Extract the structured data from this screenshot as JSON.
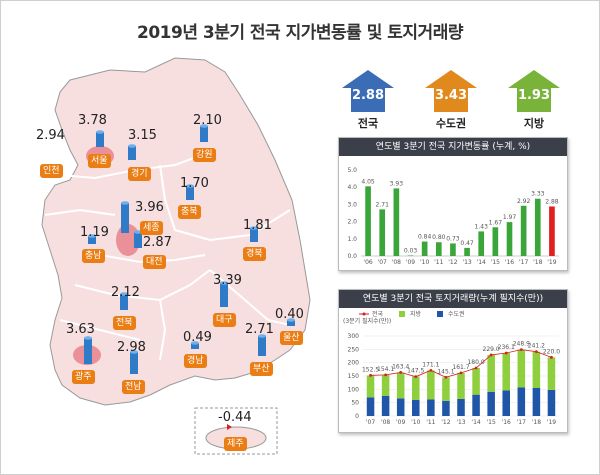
{
  "title": "2019년 3분기 전국 지가변동률 및 토지거래량",
  "summary": [
    {
      "label": "전국",
      "value": "2.88",
      "color": "#3a6db5"
    },
    {
      "label": "수도권",
      "value": "3.43",
      "color": "#e08a1e"
    },
    {
      "label": "지방",
      "value": "1.93",
      "color": "#7ab33a"
    }
  ],
  "regions": [
    {
      "name": "인천",
      "value": "2.94"
    },
    {
      "name": "서울",
      "value": "3.78"
    },
    {
      "name": "경기",
      "value": "3.15"
    },
    {
      "name": "강원",
      "value": "2.10"
    },
    {
      "name": "충북",
      "value": "1.70"
    },
    {
      "name": "세종",
      "value": "3.96"
    },
    {
      "name": "대전",
      "value": "2.87"
    },
    {
      "name": "충남",
      "value": "1.19"
    },
    {
      "name": "경북",
      "value": "1.81"
    },
    {
      "name": "대구",
      "value": "3.39"
    },
    {
      "name": "전북",
      "value": "2.12"
    },
    {
      "name": "광주",
      "value": "3.63"
    },
    {
      "name": "전남",
      "value": "2.98"
    },
    {
      "name": "경남",
      "value": "0.49"
    },
    {
      "name": "부산",
      "value": "2.71"
    },
    {
      "name": "울산",
      "value": "0.40"
    },
    {
      "name": "제주",
      "value": "-0.44"
    }
  ],
  "chart_data": [
    {
      "type": "bar",
      "title": "연도별 3분기 전국 지가변동률 (누계, %)",
      "categories": [
        "'06",
        "'07",
        "'08",
        "'09",
        "'10",
        "'11",
        "'12",
        "'13",
        "'14",
        "'15",
        "'16",
        "'17",
        "'18",
        "'19"
      ],
      "values": [
        4.05,
        2.71,
        3.93,
        0.03,
        0.84,
        0.8,
        0.73,
        0.47,
        1.43,
        1.67,
        1.97,
        2.92,
        3.33,
        2.88
      ],
      "value_labels": [
        "4.05",
        "2.71",
        "3.93",
        "0.03",
        "0.84",
        "0.80",
        "0.73",
        "0.47",
        "1.43",
        "1.67",
        "1.97",
        "2.92",
        "3.33",
        "2.88"
      ],
      "ylim": [
        0,
        5
      ],
      "yticks": [
        "5.0",
        "4.0",
        "3.0",
        "2.0",
        "1.0",
        "0.0"
      ],
      "colors": {
        "default": "#3aa63a",
        "highlight": "#e02020"
      }
    },
    {
      "type": "bar",
      "title": "연도별 3분기 전국 토지거래량(누계 필지수(만))",
      "unit": "(3분기 필지수(만))",
      "categories": [
        "'07",
        "'08",
        "'09",
        "'10",
        "'11",
        "'12",
        "'13",
        "'14",
        "'15",
        "'16",
        "'17",
        "'18",
        "'19"
      ],
      "series": [
        {
          "name": "수도권",
          "values": [
            70,
            75,
            66,
            60,
            62,
            57,
            64,
            80,
            91,
            96,
            107,
            105,
            98
          ],
          "color": "#1f56a8"
        },
        {
          "name": "지방",
          "values": [
            82,
            79,
            97,
            88,
            109,
            88,
            98,
            100,
            138,
            140,
            142,
            136,
            122
          ],
          "color": "#8fcf3d"
        }
      ],
      "line": {
        "name": "전국",
        "values": [
          152.5,
          154.1,
          163.4,
          147.5,
          171.1,
          145.1,
          161.7,
          180.0,
          229.0,
          236.1,
          248.9,
          241.2,
          220.0
        ],
        "labels": [
          "152.5",
          "154.1",
          "163.4",
          "147.5",
          "171.1",
          "145.1",
          "161.7",
          "180.0",
          "229.0",
          "236.1",
          "248.9",
          "241.2",
          "220.0"
        ],
        "color": "#d62020"
      },
      "ylim": [
        0,
        300
      ],
      "yticks": [
        "300",
        "250",
        "200",
        "150",
        "100",
        "50",
        "0"
      ]
    }
  ]
}
